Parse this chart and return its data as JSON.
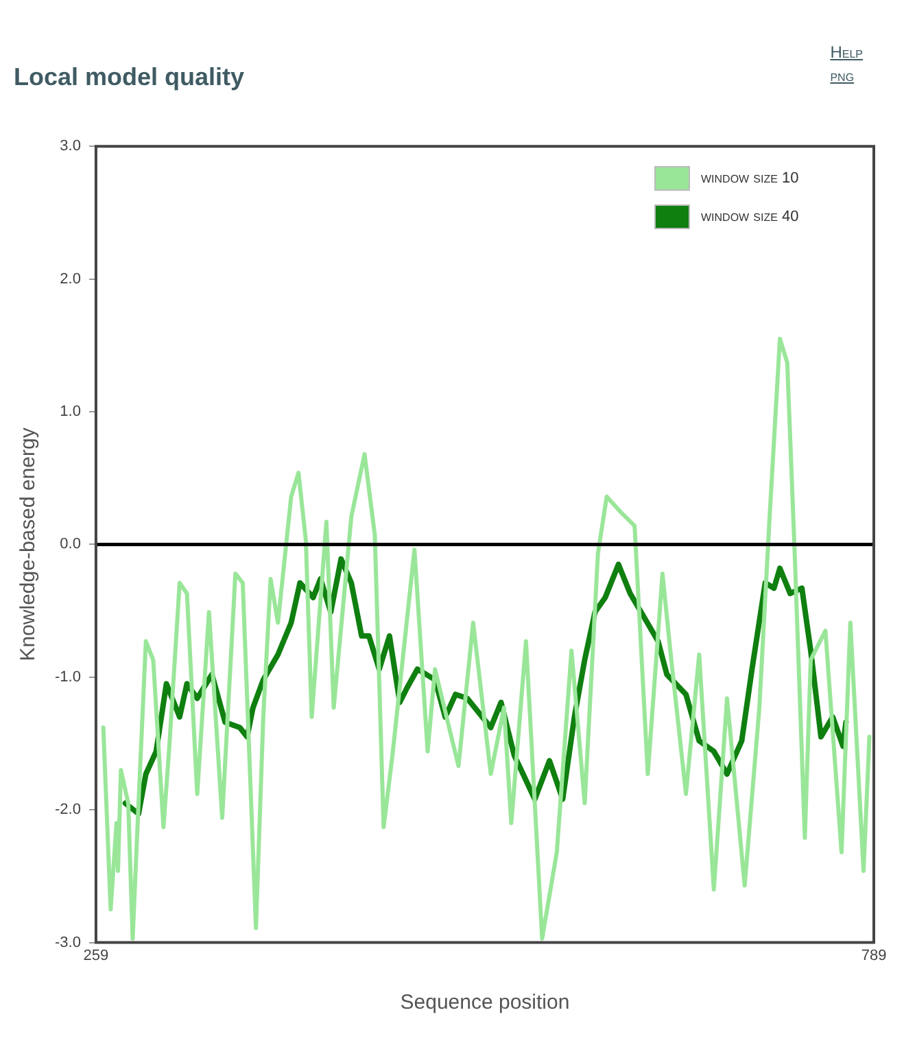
{
  "chart_data": {
    "type": "line",
    "title": "Local model quality",
    "xlabel": "Sequence position",
    "ylabel": "Knowledge-based energy",
    "annotations": [
      "Help",
      "png"
    ],
    "xlim": [
      259,
      789
    ],
    "xticks": [
      259,
      789
    ],
    "ylim": [
      -3,
      3
    ],
    "yticks": [
      {
        "value": -3,
        "label": "-3.0"
      },
      {
        "value": -2,
        "label": "-2.0"
      },
      {
        "value": -1,
        "label": "-1.0"
      },
      {
        "value": 0,
        "label": "0.0"
      },
      {
        "value": 1,
        "label": "1.0"
      },
      {
        "value": 2,
        "label": "2.0"
      },
      {
        "value": 3,
        "label": "3.0"
      }
    ],
    "grid": false,
    "legend": "top right",
    "marker": "none",
    "line_style": "solid",
    "ref_lines": [
      {
        "axis": "y",
        "value": 0,
        "color": "#000000"
      }
    ],
    "series": [
      {
        "name": "window size 10",
        "color": "#99e699",
        "x": [
          264,
          269,
          273,
          274,
          276,
          281,
          284,
          288,
          293,
          298,
          305,
          309,
          316,
          321,
          328,
          336,
          345,
          354,
          359,
          368,
          373,
          378,
          383,
          392,
          397,
          402,
          406,
          416,
          421,
          433,
          442,
          449,
          455,
          461,
          476,
          485,
          490,
          506,
          516,
          528,
          537,
          542,
          552,
          563,
          573,
          583,
          592,
          601,
          607,
          616,
          626,
          635,
          645,
          651,
          661,
          670,
          680,
          689,
          701,
          711,
          718,
          725,
          730,
          735,
          742,
          746,
          756,
          767,
          773,
          782,
          786
        ],
        "values": [
          -1.38,
          -2.75,
          -2.1,
          -2.46,
          -1.7,
          -1.95,
          -2.97,
          -1.95,
          -0.73,
          -0.87,
          -2.13,
          -1.52,
          -0.29,
          -0.37,
          -1.88,
          -0.51,
          -2.06,
          -0.22,
          -0.29,
          -2.89,
          -1.3,
          -0.26,
          -0.59,
          0.36,
          0.54,
          0.03,
          -1.3,
          0.17,
          -1.23,
          0.21,
          0.68,
          0.07,
          -2.13,
          -1.59,
          -0.04,
          -1.56,
          -0.94,
          -1.67,
          -0.59,
          -1.73,
          -1.23,
          -2.1,
          -0.73,
          -2.97,
          -2.32,
          -0.8,
          -1.95,
          -0.07,
          0.36,
          0.25,
          0.14,
          -1.73,
          -0.22,
          -0.87,
          -1.88,
          -0.83,
          -2.6,
          -1.16,
          -2.57,
          -1.23,
          0.21,
          1.55,
          1.37,
          -0.04,
          -2.21,
          -0.87,
          -0.65,
          -2.32,
          -0.59,
          -2.46,
          -1.45
        ]
      },
      {
        "name": "window size 40",
        "color": "#0f7f0f",
        "x": [
          279,
          288,
          293,
          300,
          307,
          316,
          321,
          328,
          338,
          347,
          357,
          362,
          366,
          373,
          383,
          392,
          398,
          407,
          412,
          419,
          426,
          433,
          440,
          445,
          452,
          459,
          466,
          471,
          478,
          490,
          497,
          504,
          512,
          528,
          535,
          544,
          550,
          558,
          568,
          577,
          585,
          592,
          599,
          606,
          615,
          623,
          632,
          642,
          648,
          661,
          670,
          680,
          689,
          699,
          706,
          715,
          721,
          725,
          732,
          740,
          746,
          753,
          761,
          768,
          770
        ],
        "values": [
          -1.95,
          -2.03,
          -1.73,
          -1.56,
          -1.05,
          -1.3,
          -1.05,
          -1.16,
          -0.98,
          -1.34,
          -1.38,
          -1.45,
          -1.23,
          -1.02,
          -0.83,
          -0.59,
          -0.29,
          -0.4,
          -0.26,
          -0.51,
          -0.11,
          -0.29,
          -0.69,
          -0.69,
          -0.94,
          -0.69,
          -1.19,
          -1.08,
          -0.94,
          -1.02,
          -1.3,
          -1.13,
          -1.16,
          -1.38,
          -1.19,
          -1.59,
          -1.73,
          -1.92,
          -1.63,
          -1.92,
          -1.3,
          -0.87,
          -0.51,
          -0.4,
          -0.15,
          -0.37,
          -0.54,
          -0.73,
          -0.98,
          -1.13,
          -1.48,
          -1.56,
          -1.73,
          -1.48,
          -0.94,
          -0.29,
          -0.33,
          -0.18,
          -0.37,
          -0.33,
          -0.8,
          -1.45,
          -1.3,
          -1.52,
          -1.34
        ]
      }
    ]
  }
}
